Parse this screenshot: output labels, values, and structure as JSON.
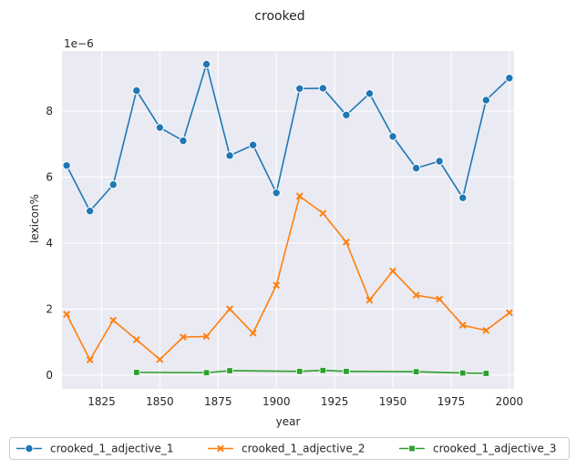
{
  "chart_data": {
    "type": "line",
    "title": "crooked",
    "xlabel": "year",
    "ylabel": "lexicon%",
    "y_offset_label": "1e−6",
    "xlim": [
      1808,
      2002
    ],
    "ylim": [
      -0.42,
      9.82
    ],
    "x_ticks": [
      1825,
      1850,
      1875,
      1900,
      1925,
      1950,
      1975,
      2000
    ],
    "y_ticks": [
      0,
      2,
      4,
      6,
      8
    ],
    "grid": true,
    "legend_position": "bottom",
    "series": [
      {
        "name": "crooked_1_adjective_1",
        "color": "#1f77b4",
        "marker": "circle",
        "x": [
          1810,
          1820,
          1830,
          1840,
          1850,
          1860,
          1870,
          1880,
          1890,
          1900,
          1910,
          1920,
          1930,
          1940,
          1950,
          1960,
          1970,
          1980,
          1990,
          2000
        ],
        "values": [
          6.35,
          4.97,
          5.77,
          8.62,
          7.5,
          7.1,
          9.42,
          6.65,
          6.97,
          5.52,
          8.68,
          8.69,
          7.88,
          8.53,
          7.23,
          6.27,
          6.48,
          5.37,
          8.33,
          9.0
        ]
      },
      {
        "name": "crooked_1_adjective_2",
        "color": "#ff7f0e",
        "marker": "x",
        "x": [
          1810,
          1820,
          1830,
          1840,
          1850,
          1860,
          1870,
          1880,
          1890,
          1900,
          1910,
          1920,
          1930,
          1940,
          1950,
          1960,
          1970,
          1980,
          1990,
          2000
        ],
        "values": [
          1.84,
          0.46,
          1.66,
          1.07,
          0.47,
          1.15,
          1.17,
          2.0,
          1.27,
          2.72,
          5.42,
          4.9,
          4.03,
          2.27,
          3.15,
          2.42,
          2.3,
          1.51,
          1.35,
          1.89
        ]
      },
      {
        "name": "crooked_1_adjective_3",
        "color": "#2ca02c",
        "marker": "square",
        "x": [
          1840,
          1870,
          1880,
          1910,
          1920,
          1930,
          1960,
          1980,
          1990
        ],
        "values": [
          0.08,
          0.07,
          0.13,
          0.11,
          0.14,
          0.11,
          0.1,
          0.06,
          0.05
        ]
      }
    ]
  }
}
